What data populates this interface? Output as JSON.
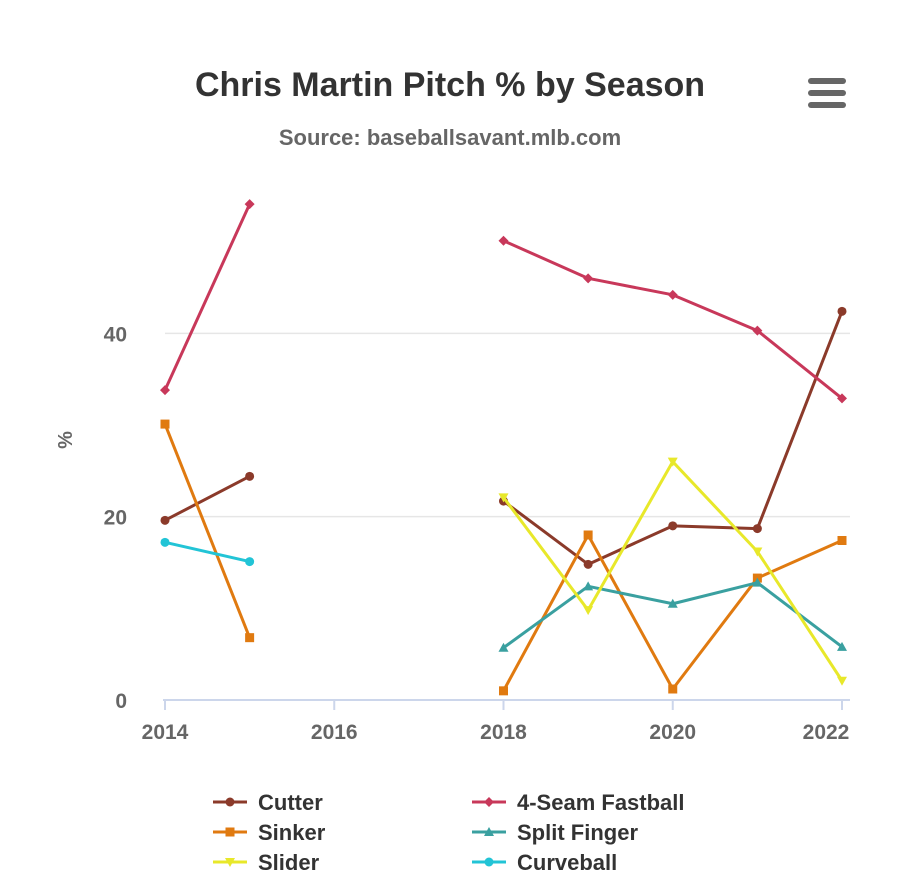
{
  "chart_data": {
    "type": "line",
    "title": "Chris Martin Pitch % by Season",
    "subtitle": "Source: baseballsavant.mlb.com",
    "ylabel": "%",
    "xlabel": "",
    "x": [
      2014,
      2015,
      2016,
      2017,
      2018,
      2019,
      2020,
      2021,
      2022
    ],
    "xticks": [
      "2014",
      "2016",
      "2018",
      "2020",
      "2022"
    ],
    "yticks": [
      "0",
      "20",
      "40"
    ],
    "xlim": [
      2014,
      2022
    ],
    "ylim": [
      0,
      60
    ],
    "grid": true,
    "legend_position": "bottom",
    "series": [
      {
        "name": "Cutter",
        "color": "#8b3a2a",
        "marker": "circle",
        "values": [
          19.6,
          24.4,
          null,
          null,
          21.7,
          14.8,
          19.0,
          18.7,
          42.4
        ]
      },
      {
        "name": "4-Seam Fastball",
        "color": "#c8385a",
        "marker": "diamond",
        "values": [
          33.8,
          54.1,
          null,
          null,
          50.1,
          46.0,
          44.2,
          40.3,
          32.9
        ]
      },
      {
        "name": "Sinker",
        "color": "#e07a10",
        "marker": "square",
        "values": [
          30.1,
          6.8,
          null,
          null,
          1.0,
          18.0,
          1.2,
          13.3,
          17.4
        ]
      },
      {
        "name": "Split Finger",
        "color": "#3aa0a0",
        "marker": "triangle",
        "values": [
          null,
          null,
          null,
          null,
          5.7,
          12.4,
          10.5,
          12.8,
          5.8
        ]
      },
      {
        "name": "Slider",
        "color": "#e8e82a",
        "marker": "triangle-down",
        "values": [
          null,
          null,
          null,
          null,
          22.1,
          9.8,
          26.0,
          16.2,
          2.1
        ]
      },
      {
        "name": "Curveball",
        "color": "#22c4d6",
        "marker": "circle",
        "values": [
          17.2,
          15.1,
          null,
          null,
          null,
          null,
          null,
          null,
          null
        ]
      }
    ]
  },
  "menu": {
    "icon": "hamburger-menu-icon"
  }
}
